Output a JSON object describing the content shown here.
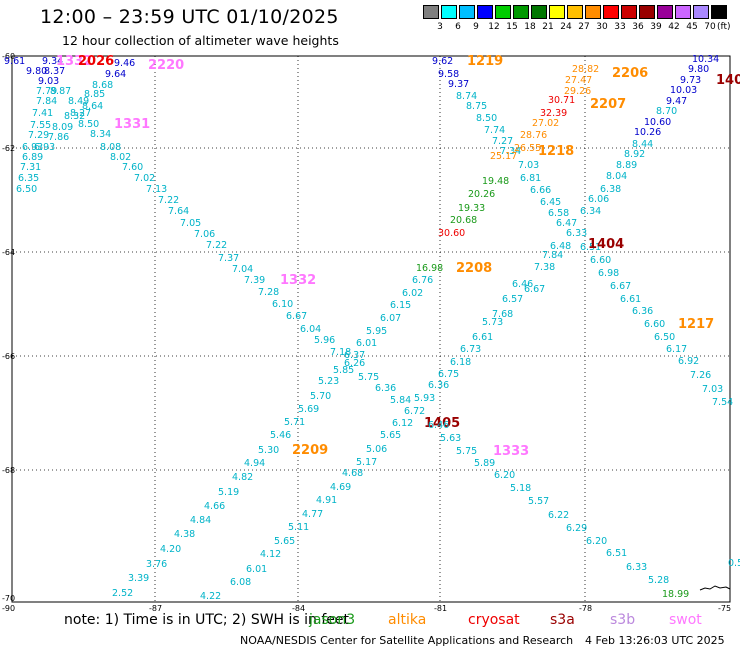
{
  "header": {
    "title": "12:00 – 23:59 UTC 01/10/2025",
    "subtitle": "12 hour collection of altimeter wave heights"
  },
  "colorbar": {
    "colors": [
      "#7f7f7f",
      "#00ffff",
      "#00bfff",
      "#0000ff",
      "#00cd00",
      "#009900",
      "#007700",
      "#ffff00",
      "#ffbf00",
      "#ff8c00",
      "#ff0000",
      "#cc0000",
      "#990000",
      "#990099",
      "#cc66ff",
      "#aa88ff",
      "#000000"
    ],
    "labels": [
      "3",
      "6",
      "9",
      "12",
      "15",
      "18",
      "21",
      "24",
      "27",
      "30",
      "33",
      "36",
      "39",
      "42",
      "45",
      "70"
    ],
    "unit": "(ft)"
  },
  "axes": {
    "y_labels": [
      "-60",
      "-62",
      "-64",
      "-66",
      "-68",
      "-70"
    ],
    "x_labels": [
      "-90",
      "-87",
      "-84",
      "-81",
      "-78",
      "-75"
    ]
  },
  "satellite_colors": {
    "jason3": "#1a9a1a",
    "altika": "#ff8c00",
    "cryosat": "#ee0000",
    "s3a": "#990000",
    "s3b": "#bb88dd",
    "swot": "#ff77ff",
    "default": "#00b3c8",
    "blue": "#0000cc"
  },
  "observations": [
    {
      "t": "9.61",
      "c": "blue"
    },
    {
      "t": "9.34",
      "c": "blue"
    },
    {
      "t": "1332",
      "c": "swot"
    },
    {
      "t": "2026",
      "c": "cryosat"
    },
    {
      "t": "9.46",
      "c": "blue"
    },
    {
      "t": "2220",
      "c": "swot"
    },
    {
      "t": "9.80",
      "c": "blue"
    },
    {
      "t": "8.37",
      "c": "blue"
    },
    {
      "t": "9.64",
      "c": "blue"
    },
    {
      "t": "9.03",
      "c": "blue"
    },
    {
      "t": "8.68",
      "c": "default"
    },
    {
      "t": "7.79",
      "c": "default"
    },
    {
      "t": "8.87",
      "c": "default"
    },
    {
      "t": "8.85",
      "c": "default"
    },
    {
      "t": "7.84",
      "c": "default"
    },
    {
      "t": "8.49",
      "c": "default"
    },
    {
      "t": "7.41",
      "c": "default"
    },
    {
      "t": "8.64",
      "c": "default"
    },
    {
      "t": "8.27",
      "c": "default"
    },
    {
      "t": "7.55",
      "c": "default"
    },
    {
      "t": "8.09",
      "c": "default"
    },
    {
      "t": "8.32",
      "c": "default"
    },
    {
      "t": "8.50",
      "c": "default"
    },
    {
      "t": "1331",
      "c": "swot"
    },
    {
      "t": "7.29",
      "c": "default"
    },
    {
      "t": "7.86",
      "c": "default"
    },
    {
      "t": "8.34",
      "c": "default"
    },
    {
      "t": "6.93",
      "c": "default"
    },
    {
      "t": "6.93",
      "c": "default"
    },
    {
      "t": "8.08",
      "c": "default"
    },
    {
      "t": "6.89",
      "c": "default"
    },
    {
      "t": "8.02",
      "c": "default"
    },
    {
      "t": "7.31",
      "c": "default"
    },
    {
      "t": "7.60",
      "c": "default"
    },
    {
      "t": "6.35",
      "c": "default"
    },
    {
      "t": "7.02",
      "c": "default"
    },
    {
      "t": "6.50",
      "c": "default"
    },
    {
      "t": "7.13",
      "c": "default"
    },
    {
      "t": "7.22",
      "c": "default"
    },
    {
      "t": "7.64",
      "c": "default"
    },
    {
      "t": "7.05",
      "c": "default"
    },
    {
      "t": "7.06",
      "c": "default"
    },
    {
      "t": "7.22",
      "c": "default"
    },
    {
      "t": "7.37",
      "c": "default"
    },
    {
      "t": "7.04",
      "c": "default"
    },
    {
      "t": "7.39",
      "c": "default"
    },
    {
      "t": "1332",
      "c": "swot"
    },
    {
      "t": "7.28",
      "c": "default"
    },
    {
      "t": "6.10",
      "c": "default"
    },
    {
      "t": "6.67",
      "c": "default"
    },
    {
      "t": "6.04",
      "c": "default"
    },
    {
      "t": "5.96",
      "c": "default"
    },
    {
      "t": "7.18",
      "c": "default"
    },
    {
      "t": "6.37",
      "c": "default"
    },
    {
      "t": "6.26",
      "c": "default"
    },
    {
      "t": "5.85",
      "c": "default"
    },
    {
      "t": "5.23",
      "c": "default"
    },
    {
      "t": "5.75",
      "c": "default"
    },
    {
      "t": "5.70",
      "c": "default"
    },
    {
      "t": "6.36",
      "c": "default"
    },
    {
      "t": "5.84",
      "c": "default"
    },
    {
      "t": "5.69",
      "c": "default"
    },
    {
      "t": "5.71",
      "c": "default"
    },
    {
      "t": "5.46",
      "c": "default"
    },
    {
      "t": "5.30",
      "c": "default"
    },
    {
      "t": "2209",
      "c": "altika"
    },
    {
      "t": "4.94",
      "c": "default"
    },
    {
      "t": "4.82",
      "c": "default"
    },
    {
      "t": "5.19",
      "c": "default"
    },
    {
      "t": "4.66",
      "c": "default"
    },
    {
      "t": "4.84",
      "c": "default"
    },
    {
      "t": "4.38",
      "c": "default"
    },
    {
      "t": "4.20",
      "c": "default"
    },
    {
      "t": "3.76",
      "c": "default"
    },
    {
      "t": "3.39",
      "c": "default"
    },
    {
      "t": "2.52",
      "c": "default"
    },
    {
      "t": "4.22",
      "c": "default"
    },
    {
      "t": "6.08",
      "c": "default"
    },
    {
      "t": "6.01",
      "c": "default"
    },
    {
      "t": "4.12",
      "c": "default"
    },
    {
      "t": "5.65",
      "c": "default"
    },
    {
      "t": "5.11",
      "c": "default"
    },
    {
      "t": "4.77",
      "c": "default"
    },
    {
      "t": "4.91",
      "c": "default"
    },
    {
      "t": "4.69",
      "c": "default"
    },
    {
      "t": "4.68",
      "c": "default"
    },
    {
      "t": "5.17",
      "c": "default"
    },
    {
      "t": "5.06",
      "c": "default"
    },
    {
      "t": "5.65",
      "c": "default"
    },
    {
      "t": "6.12",
      "c": "default"
    },
    {
      "t": "6.72",
      "c": "default"
    },
    {
      "t": "5.93",
      "c": "default"
    },
    {
      "t": "6.36",
      "c": "default"
    },
    {
      "t": "1405",
      "c": "s3a"
    },
    {
      "t": "6.46",
      "c": "default"
    },
    {
      "t": "5.63",
      "c": "default"
    },
    {
      "t": "5.75",
      "c": "default"
    },
    {
      "t": "5.89",
      "c": "default"
    },
    {
      "t": "1333",
      "c": "swot"
    },
    {
      "t": "6.20",
      "c": "default"
    },
    {
      "t": "5.18",
      "c": "default"
    },
    {
      "t": "5.57",
      "c": "default"
    },
    {
      "t": "6.22",
      "c": "default"
    },
    {
      "t": "6.29",
      "c": "default"
    },
    {
      "t": "6.20",
      "c": "default"
    },
    {
      "t": "6.51",
      "c": "default"
    },
    {
      "t": "6.33",
      "c": "default"
    },
    {
      "t": "5.28",
      "c": "default"
    },
    {
      "t": "18.99",
      "c": "jason3"
    },
    {
      "t": "6.01",
      "c": "default"
    },
    {
      "t": "5.95",
      "c": "default"
    },
    {
      "t": "6.07",
      "c": "default"
    },
    {
      "t": "6.15",
      "c": "default"
    },
    {
      "t": "6.02",
      "c": "default"
    },
    {
      "t": "6.76",
      "c": "default"
    },
    {
      "t": "16.98",
      "c": "jason3"
    },
    {
      "t": "2208",
      "c": "altika"
    },
    {
      "t": "6.18",
      "c": "default"
    },
    {
      "t": "6.75",
      "c": "default"
    },
    {
      "t": "6.73",
      "c": "default"
    },
    {
      "t": "6.61",
      "c": "default"
    },
    {
      "t": "5.73",
      "c": "default"
    },
    {
      "t": "7.68",
      "c": "default"
    },
    {
      "t": "6.57",
      "c": "default"
    },
    {
      "t": "6.46",
      "c": "default"
    },
    {
      "t": "6.67",
      "c": "default"
    },
    {
      "t": "7.38",
      "c": "default"
    },
    {
      "t": "7.84",
      "c": "default"
    },
    {
      "t": "6.48",
      "c": "default"
    },
    {
      "t": "6.51",
      "c": "default"
    },
    {
      "t": "1404",
      "c": "s3a"
    },
    {
      "t": "6.60",
      "c": "default"
    },
    {
      "t": "6.98",
      "c": "default"
    },
    {
      "t": "6.67",
      "c": "default"
    },
    {
      "t": "6.61",
      "c": "default"
    },
    {
      "t": "6.36",
      "c": "default"
    },
    {
      "t": "6.60",
      "c": "default"
    },
    {
      "t": "1217",
      "c": "altika"
    },
    {
      "t": "6.50",
      "c": "default"
    },
    {
      "t": "6.17",
      "c": "default"
    },
    {
      "t": "6.92",
      "c": "default"
    },
    {
      "t": "7.26",
      "c": "default"
    },
    {
      "t": "7.03",
      "c": "default"
    },
    {
      "t": "7.54",
      "c": "default"
    },
    {
      "t": "9.62",
      "c": "blue"
    },
    {
      "t": "1219",
      "c": "altika"
    },
    {
      "t": "9.58",
      "c": "blue"
    },
    {
      "t": "9.37",
      "c": "blue"
    },
    {
      "t": "8.74",
      "c": "default"
    },
    {
      "t": "8.75",
      "c": "default"
    },
    {
      "t": "8.50",
      "c": "default"
    },
    {
      "t": "7.74",
      "c": "default"
    },
    {
      "t": "7.27",
      "c": "default"
    },
    {
      "t": "7.34",
      "c": "default"
    },
    {
      "t": "7.03",
      "c": "default"
    },
    {
      "t": "6.81",
      "c": "default"
    },
    {
      "t": "6.66",
      "c": "default"
    },
    {
      "t": "6.45",
      "c": "default"
    },
    {
      "t": "6.58",
      "c": "default"
    },
    {
      "t": "6.47",
      "c": "default"
    },
    {
      "t": "6.33",
      "c": "default"
    },
    {
      "t": "6.34",
      "c": "default"
    },
    {
      "t": "6.06",
      "c": "default"
    },
    {
      "t": "6.38",
      "c": "default"
    },
    {
      "t": "8.04",
      "c": "default"
    },
    {
      "t": "8.89",
      "c": "default"
    },
    {
      "t": "8.92",
      "c": "default"
    },
    {
      "t": "8.44",
      "c": "default"
    },
    {
      "t": "10.26",
      "c": "blue"
    },
    {
      "t": "10.60",
      "c": "blue"
    },
    {
      "t": "8.70",
      "c": "default"
    },
    {
      "t": "9.47",
      "c": "blue"
    },
    {
      "t": "10.03",
      "c": "blue"
    },
    {
      "t": "9.73",
      "c": "blue"
    },
    {
      "t": "9.80",
      "c": "blue"
    },
    {
      "t": "10.34",
      "c": "blue"
    },
    {
      "t": "140",
      "c": "s3a"
    },
    {
      "t": "28.82",
      "c": "altika"
    },
    {
      "t": "2206",
      "c": "altika"
    },
    {
      "t": "27.47",
      "c": "altika"
    },
    {
      "t": "29.26",
      "c": "altika"
    },
    {
      "t": "2207",
      "c": "altika"
    },
    {
      "t": "30.71",
      "c": "cryosat"
    },
    {
      "t": "32.39",
      "c": "cryosat"
    },
    {
      "t": "27.02",
      "c": "altika"
    },
    {
      "t": "28.76",
      "c": "altika"
    },
    {
      "t": "26.55",
      "c": "altika"
    },
    {
      "t": "1218",
      "c": "altika"
    },
    {
      "t": "25.17",
      "c": "altika"
    },
    {
      "t": "19.48",
      "c": "jason3"
    },
    {
      "t": "20.26",
      "c": "jason3"
    },
    {
      "t": "19.33",
      "c": "jason3"
    },
    {
      "t": "20.68",
      "c": "jason3"
    },
    {
      "t": "30.60",
      "c": "cryosat"
    },
    {
      "t": "0.5",
      "c": "default"
    }
  ],
  "footer": {
    "note": "note: 1) Time is in UTC; 2) SWH is in feet",
    "legend": [
      {
        "name": "jason3",
        "color": "jason3"
      },
      {
        "name": "altika",
        "color": "altika"
      },
      {
        "name": "cryosat",
        "color": "cryosat"
      },
      {
        "name": "s3a",
        "color": "s3a"
      },
      {
        "name": "s3b",
        "color": "s3b"
      },
      {
        "name": "swot",
        "color": "swot"
      }
    ],
    "credit": "NOAA/NESDIS Center for Satellite Applications and Research",
    "timestamp": "4 Feb 13:26:03 UTC 2025"
  }
}
